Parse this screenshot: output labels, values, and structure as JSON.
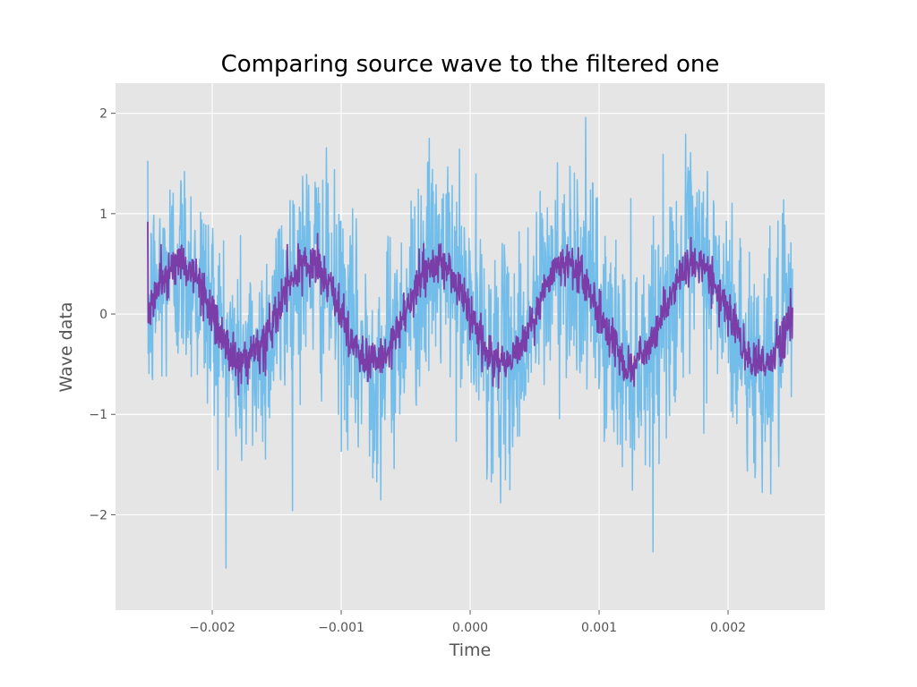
{
  "chart_data": {
    "type": "line",
    "title": "Comparing source wave to the filtered one",
    "xlabel": "Time",
    "ylabel": "Wave data",
    "xlim": [
      -0.00275,
      0.00275
    ],
    "ylim": [
      -2.95,
      2.3
    ],
    "xticks": [
      -0.002,
      -0.001,
      0.0,
      0.001,
      0.002
    ],
    "xtick_labels": [
      "−0.002",
      "−0.001",
      "0.000",
      "0.001",
      "0.002"
    ],
    "yticks": [
      -2,
      -1,
      0,
      1,
      2
    ],
    "ytick_labels": [
      "−2",
      "−1",
      "0",
      "1",
      "2"
    ],
    "grid": true,
    "background": "#e5e5e5",
    "wave": {
      "x_start": -0.0025,
      "x_end": 0.0025,
      "frequency_hz": 1000,
      "amplitude": 0.5,
      "phase_offset": -0.0025
    },
    "series": [
      {
        "color": "#72bdea",
        "noise_std": 0.55,
        "y_min": -2.72,
        "y_max": 2.08,
        "points": 1600
      },
      {
        "color": "#7b3ea8",
        "noise_std": 0.11,
        "y_min": -0.85,
        "y_max": 0.92,
        "points": 1600
      }
    ]
  }
}
